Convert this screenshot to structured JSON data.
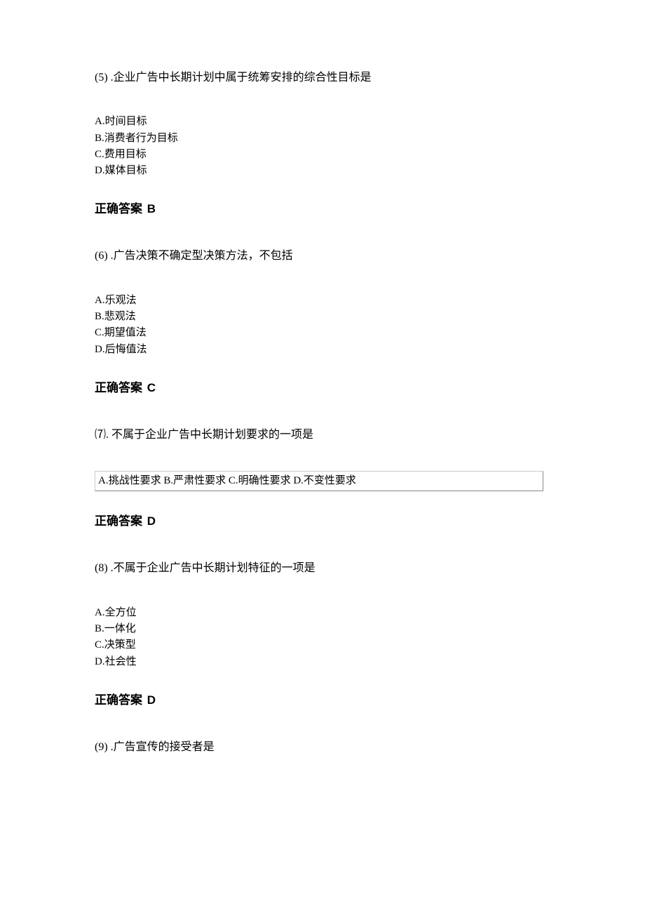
{
  "questions": [
    {
      "number": "(5)",
      "title": ".企业广告中长期计划中属于统筹安排的综合性目标是",
      "options": {
        "A": "时间目标",
        "B": "消费者行为目标",
        "C": "费用目标",
        "D": "媒体目标"
      },
      "answer_label": "正确答案",
      "answer": "B"
    },
    {
      "number": "(6)",
      "title": ".广告决策不确定型决策方法，不包括",
      "options": {
        "A": "乐观法",
        "B": "悲观法",
        "C": "期望值法",
        "D": "后悔值法"
      },
      "answer_label": "正确答案",
      "answer": "C"
    },
    {
      "number": "⑺.",
      "title": "不属于企业广告中长期计划要求的一项是",
      "boxed_options": "A.挑战性要求 B.严肃性要求 C.明确性要求 D.不变性要求",
      "answer_label": "正确答案",
      "answer": "D"
    },
    {
      "number": "(8)",
      "title": ".不属于企业广告中长期计划特征的一项是",
      "options": {
        "A": "全方位",
        "B": "一体化",
        "C": "决策型",
        "D": "社会性"
      },
      "answer_label": "正确答案",
      "answer": "D"
    },
    {
      "number": "(9)",
      "title": ".广告宣传的接受者是"
    }
  ]
}
